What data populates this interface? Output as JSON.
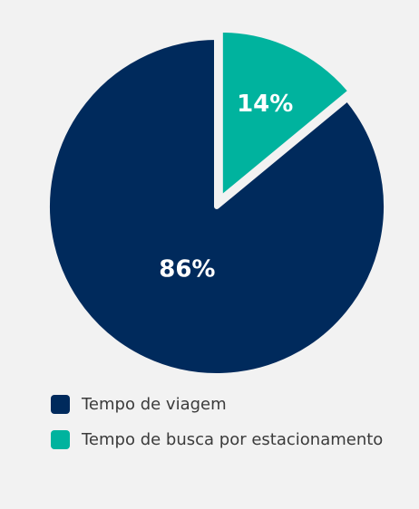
{
  "chart_data": {
    "type": "pie",
    "slices": [
      {
        "label": "Tempo de viagem",
        "value": 86,
        "display": "86%",
        "color": "#002a5c"
      },
      {
        "label": "Tempo de busca por estacionamento",
        "value": 14,
        "display": "14%",
        "color": "#00b39e"
      }
    ],
    "exploded_slice": "Tempo de busca por estacionamento",
    "legend_position": "bottom-left"
  },
  "colors": {
    "background": "#f2f2f2",
    "label_text": "#ffffff",
    "legend_text": "#3b3b3b"
  }
}
